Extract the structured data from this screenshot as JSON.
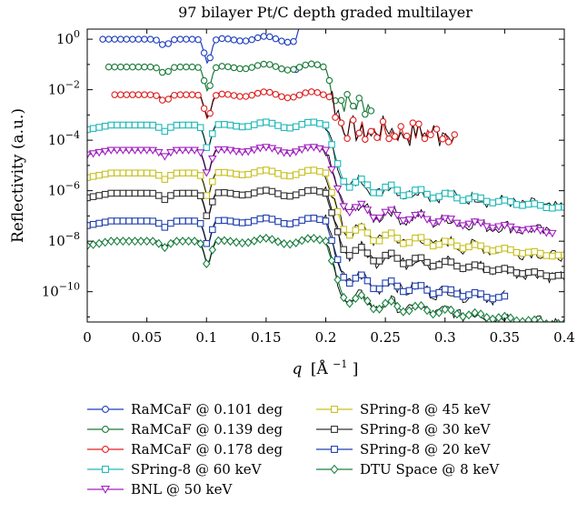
{
  "chart_data": {
    "type": "line",
    "title": "97 bilayer Pt/C depth graded multilayer",
    "xlabel_var": "q",
    "xlabel_unit": "[Å",
    "xlabel_unit_exp": "−1",
    "xlabel_unit_close": "]",
    "ylabel": "Reflectivity (a.u.)",
    "xlim": [
      0,
      0.4
    ],
    "ylim_log10": [
      -11.2,
      0.4
    ],
    "yscale": "log",
    "grid": false,
    "legend_position": "bottom",
    "x_ticks": [
      {
        "value": 0,
        "label": "0"
      },
      {
        "value": 0.05,
        "label": "0.05"
      },
      {
        "value": 0.1,
        "label": "0.1"
      },
      {
        "value": 0.15,
        "label": "0.15"
      },
      {
        "value": 0.2,
        "label": "0.2"
      },
      {
        "value": 0.25,
        "label": "0.25"
      },
      {
        "value": 0.3,
        "label": "0.3"
      },
      {
        "value": 0.35,
        "label": "0.35"
      },
      {
        "value": 0.4,
        "label": "0.4"
      }
    ],
    "y_ticks": [
      {
        "exp": 0,
        "base": "10",
        "sup": "0"
      },
      {
        "exp": -2,
        "base": "10",
        "sup": "−2"
      },
      {
        "exp": -4,
        "base": "10",
        "sup": "−4"
      },
      {
        "exp": -6,
        "base": "10",
        "sup": "−6"
      },
      {
        "exp": -8,
        "base": "10",
        "sup": "−8"
      },
      {
        "exp": -10,
        "base": "10",
        "sup": "−10"
      }
    ],
    "series": [
      {
        "name": "RaMCaF @ 0.101 deg",
        "color": "#1f3fbf",
        "marker": "circle",
        "qmin": 0.013,
        "qmax": 0.175,
        "plateau": 0.0,
        "qc": 0.175,
        "tail": "spike"
      },
      {
        "name": "RaMCaF @ 0.139 deg",
        "color": "#1a7a3a",
        "marker": "circle",
        "qmin": 0.018,
        "qmax": 0.24,
        "plateau": -1.1,
        "qc": 0.2,
        "tail": "noisy"
      },
      {
        "name": "RaMCaF @ 0.178 deg",
        "color": "#e02020",
        "marker": "circle",
        "qmin": 0.023,
        "qmax": 0.31,
        "plateau": -2.2,
        "qc": 0.205,
        "tail": "noisy"
      },
      {
        "name": "SPring-8 @ 60 keV",
        "color": "#20b8b8",
        "marker": "square",
        "qmin": 0.0,
        "qmax": 0.4,
        "plateau": -3.4,
        "qc": 0.2,
        "tail": "decay"
      },
      {
        "name": "BNL @ 50 keV",
        "color": "#a020c0",
        "marker": "triangle-down",
        "qmin": 0.0,
        "qmax": 0.39,
        "plateau": -4.4,
        "qc": 0.2,
        "tail": "decay"
      },
      {
        "name": "SPring-8 @ 45 keV",
        "color": "#c8c020",
        "marker": "square",
        "qmin": 0.0,
        "qmax": 0.4,
        "plateau": -5.3,
        "qc": 0.2,
        "tail": "decay"
      },
      {
        "name": "SPring-8 @ 30 keV",
        "color": "#333333",
        "marker": "square",
        "qmin": 0.0,
        "qmax": 0.4,
        "plateau": -6.1,
        "qc": 0.2,
        "tail": "decay"
      },
      {
        "name": "SPring-8 @ 20 keV",
        "color": "#2040b0",
        "marker": "square",
        "qmin": 0.0,
        "qmax": 0.35,
        "plateau": -7.2,
        "qc": 0.2,
        "tail": "decay"
      },
      {
        "name": "DTU Space @ 8 keV",
        "color": "#1a8040",
        "marker": "diamond",
        "qmin": 0.0,
        "qmax": 0.4,
        "plateau": -8.0,
        "qc": 0.2,
        "tail": "decay"
      }
    ]
  }
}
